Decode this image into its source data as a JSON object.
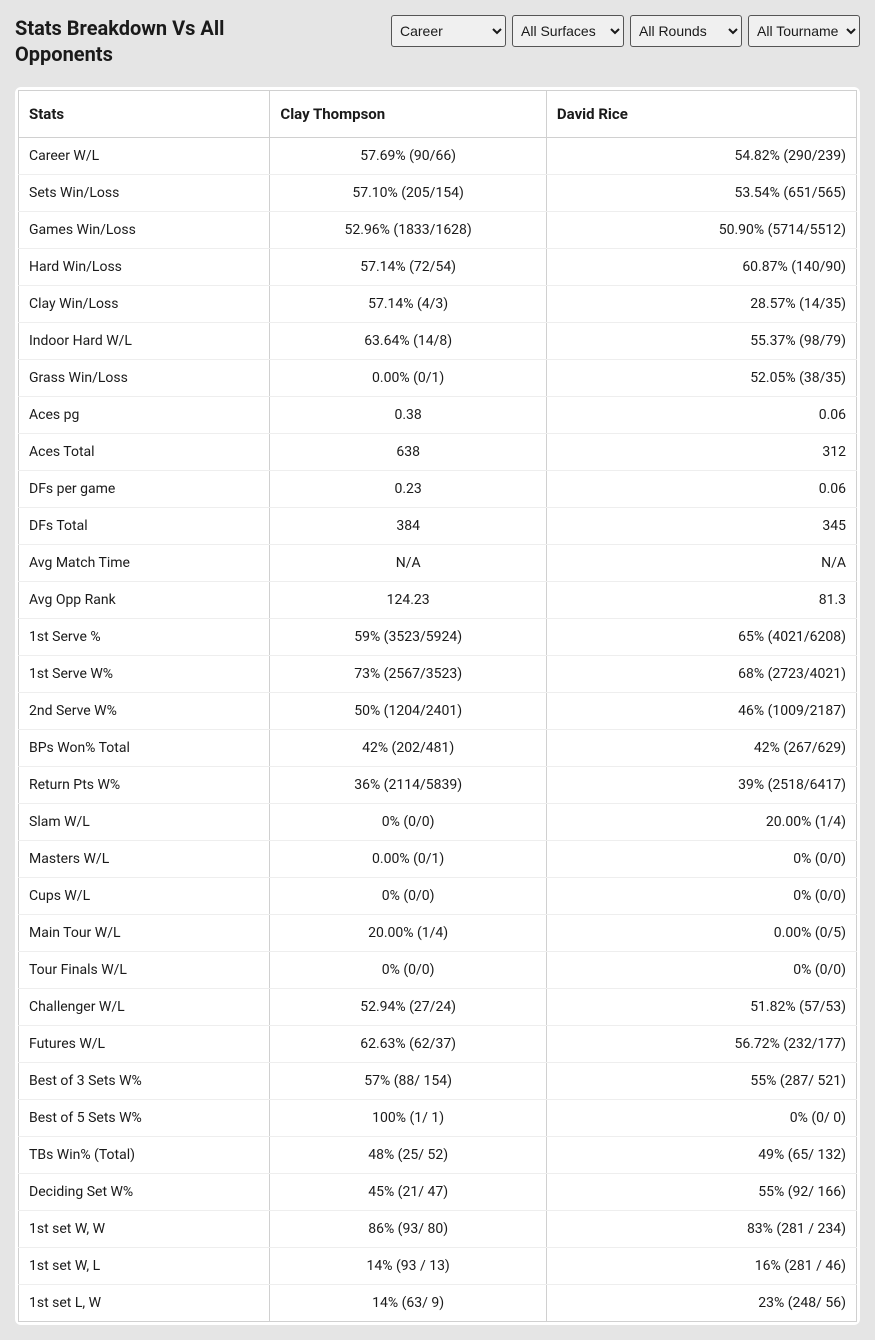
{
  "title": "Stats Breakdown Vs All Opponents",
  "filters": {
    "period": {
      "selected": "Career",
      "options": [
        "Career"
      ]
    },
    "surface": {
      "selected": "All Surfaces",
      "options": [
        "All Surfaces"
      ]
    },
    "rounds": {
      "selected": "All Rounds",
      "options": [
        "All Rounds"
      ]
    },
    "tournaments": {
      "selected": "All Tournaments",
      "options": [
        "All Tournaments"
      ]
    }
  },
  "table": {
    "columns": [
      "Stats",
      "Clay Thompson",
      "David Rice"
    ],
    "rows": [
      [
        "Career W/L",
        "57.69% (90/66)",
        "54.82% (290/239)"
      ],
      [
        "Sets Win/Loss",
        "57.10% (205/154)",
        "53.54% (651/565)"
      ],
      [
        "Games Win/Loss",
        "52.96% (1833/1628)",
        "50.90% (5714/5512)"
      ],
      [
        "Hard Win/Loss",
        "57.14% (72/54)",
        "60.87% (140/90)"
      ],
      [
        "Clay Win/Loss",
        "57.14% (4/3)",
        "28.57% (14/35)"
      ],
      [
        "Indoor Hard W/L",
        "63.64% (14/8)",
        "55.37% (98/79)"
      ],
      [
        "Grass Win/Loss",
        "0.00% (0/1)",
        "52.05% (38/35)"
      ],
      [
        "Aces pg",
        "0.38",
        "0.06"
      ],
      [
        "Aces Total",
        "638",
        "312"
      ],
      [
        "DFs per game",
        "0.23",
        "0.06"
      ],
      [
        "DFs Total",
        "384",
        "345"
      ],
      [
        "Avg Match Time",
        "N/A",
        "N/A"
      ],
      [
        "Avg Opp Rank",
        "124.23",
        "81.3"
      ],
      [
        "1st Serve %",
        "59% (3523/5924)",
        "65% (4021/6208)"
      ],
      [
        "1st Serve W%",
        "73% (2567/3523)",
        "68% (2723/4021)"
      ],
      [
        "2nd Serve W%",
        "50% (1204/2401)",
        "46% (1009/2187)"
      ],
      [
        "BPs Won% Total",
        "42% (202/481)",
        "42% (267/629)"
      ],
      [
        "Return Pts W%",
        "36% (2114/5839)",
        "39% (2518/6417)"
      ],
      [
        "Slam W/L",
        "0% (0/0)",
        "20.00% (1/4)"
      ],
      [
        "Masters W/L",
        "0.00% (0/1)",
        "0% (0/0)"
      ],
      [
        "Cups W/L",
        "0% (0/0)",
        "0% (0/0)"
      ],
      [
        "Main Tour W/L",
        "20.00% (1/4)",
        "0.00% (0/5)"
      ],
      [
        "Tour Finals W/L",
        "0% (0/0)",
        "0% (0/0)"
      ],
      [
        "Challenger W/L",
        "52.94% (27/24)",
        "51.82% (57/53)"
      ],
      [
        "Futures W/L",
        "62.63% (62/37)",
        "56.72% (232/177)"
      ],
      [
        "Best of 3 Sets W%",
        "57% (88/ 154)",
        "55% (287/ 521)"
      ],
      [
        "Best of 5 Sets W%",
        "100% (1/ 1)",
        "0% (0/ 0)"
      ],
      [
        "TBs Win% (Total)",
        "48% (25/ 52)",
        "49% (65/ 132)"
      ],
      [
        "Deciding Set W%",
        "45% (21/ 47)",
        "55% (92/ 166)"
      ],
      [
        "1st set W, W",
        "86% (93/ 80)",
        "83% (281 / 234)"
      ],
      [
        "1st set W, L",
        "14% (93 / 13)",
        "16% (281 / 46)"
      ],
      [
        "1st set L, W",
        "14% (63/ 9)",
        "23% (248/ 56)"
      ]
    ]
  }
}
